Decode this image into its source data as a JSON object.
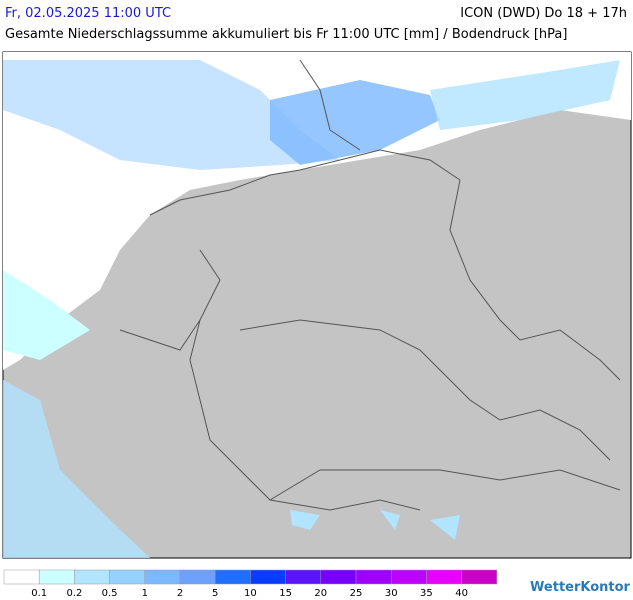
{
  "header": {
    "datetime": "Fr, 02.05.2025 11:00 UTC",
    "model": "ICON (DWD) Do 18 + 17h",
    "subtitle": "Gesamte Niederschlagssumme akkumuliert bis Fr 11:00 UTC [mm] / Bodendruck [hPa]"
  },
  "legend": {
    "colors": [
      "#ffffff",
      "#ccffff",
      "#b0e4ff",
      "#96d0ff",
      "#7cb8ff",
      "#6ea0ff",
      "#1e6eff",
      "#0a3cff",
      "#5a14ff",
      "#7800ff",
      "#a000ff",
      "#be00ff",
      "#e600ff",
      "#c800c8"
    ],
    "labels": [
      0.1,
      0.2,
      0.5,
      1,
      2,
      5,
      10,
      15,
      20,
      25,
      30,
      35,
      40
    ]
  },
  "brand": "WetterKontor"
}
